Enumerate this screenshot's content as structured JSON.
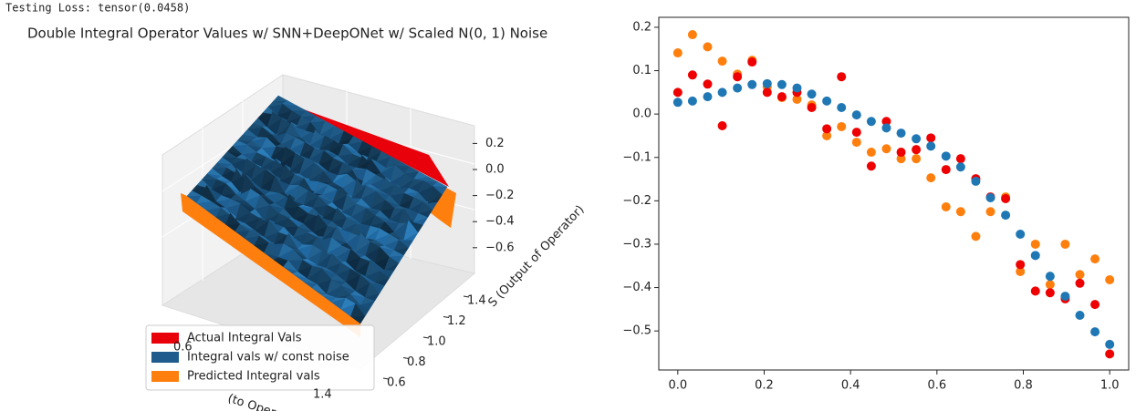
{
  "output_text": "Testing Loss:  tensor(0.0458)",
  "chart_data": [
    {
      "type": "surface3d",
      "title": "Double Integral Operator Values w/ SNN+DeepONet w/ Scaled N(0, 1) Noise",
      "xlabel": "(to Operator)",
      "ylabel": "S (Output of Operator)",
      "xticks": [
        0.6,
        1.4
      ],
      "yticks": [
        0.6,
        0.8,
        {
          "value": 1.0,
          "label": "1.0"
        },
        1.2,
        1.4
      ],
      "zticks": [
        {
          "value": -0.6,
          "label": "−0.6"
        },
        {
          "value": -0.4,
          "label": "−0.4"
        },
        {
          "value": -0.2,
          "label": "−0.2"
        },
        {
          "value": 0.0,
          "label": "0.0"
        },
        0.2
      ],
      "legend": "lower left",
      "series": [
        {
          "name": "Actual Integral Vals",
          "color": "#e8000b"
        },
        {
          "name": "Integral vals w/ const noise",
          "color": "#1f5b8c"
        },
        {
          "name": "Predicted Integral vals",
          "color": "#ff7f0e"
        }
      ]
    },
    {
      "type": "scatter",
      "xlim": [
        -0.044,
        1.044
      ],
      "ylim": [
        -0.59,
        0.223
      ],
      "xticks": [
        {
          "value": 0,
          "label": "0.0"
        },
        0.2,
        0.4,
        0.6,
        0.8,
        {
          "value": 1,
          "label": "1.0"
        }
      ],
      "yticks": [
        {
          "value": -0.5,
          "label": "−0.5"
        },
        {
          "value": -0.4,
          "label": "−0.4"
        },
        {
          "value": -0.3,
          "label": "−0.3"
        },
        {
          "value": -0.2,
          "label": "−0.2"
        },
        {
          "value": -0.1,
          "label": "−0.1"
        },
        {
          "value": 0,
          "label": "0.0"
        },
        0.1,
        0.2
      ],
      "x": [
        0,
        0.034,
        0.069,
        0.103,
        0.138,
        0.172,
        0.207,
        0.241,
        0.276,
        0.31,
        0.345,
        0.379,
        0.414,
        0.448,
        0.483,
        0.517,
        0.552,
        0.586,
        0.621,
        0.655,
        0.69,
        0.724,
        0.759,
        0.793,
        0.828,
        0.862,
        0.897,
        0.931,
        0.966,
        1.0
      ],
      "series": [
        {
          "color": "#ff7f0e",
          "values": [
            0.141,
            0.183,
            0.155,
            0.122,
            0.092,
            0.124,
            0.063,
            0.038,
            0.034,
            0.021,
            -0.05,
            -0.029,
            -0.065,
            -0.088,
            -0.08,
            -0.103,
            -0.103,
            -0.147,
            -0.214,
            -0.225,
            -0.282,
            -0.225,
            -0.191,
            -0.363,
            -0.3,
            -0.393,
            -0.3,
            -0.37,
            -0.334,
            -0.382
          ]
        },
        {
          "color": "#ee0000",
          "values": [
            0.05,
            0.09,
            0.069,
            -0.027,
            0.086,
            0.12,
            0.05,
            0.04,
            0.05,
            0.015,
            -0.034,
            0.086,
            -0.042,
            -0.12,
            -0.017,
            -0.088,
            -0.082,
            -0.055,
            -0.128,
            -0.103,
            -0.149,
            -0.191,
            -0.195,
            -0.347,
            -0.408,
            -0.412,
            -0.426,
            -0.39,
            -0.439,
            -0.553
          ]
        },
        {
          "color": "#1f77b4",
          "values": [
            0.027,
            0.03,
            0.04,
            0.05,
            0.06,
            0.068,
            0.07,
            0.068,
            0.06,
            0.046,
            0.03,
            0.015,
            -0.002,
            -0.017,
            -0.032,
            -0.044,
            -0.057,
            -0.074,
            -0.097,
            -0.122,
            -0.155,
            -0.193,
            -0.233,
            -0.277,
            -0.326,
            -0.374,
            -0.42,
            -0.464,
            -0.502,
            -0.531
          ]
        }
      ]
    }
  ]
}
